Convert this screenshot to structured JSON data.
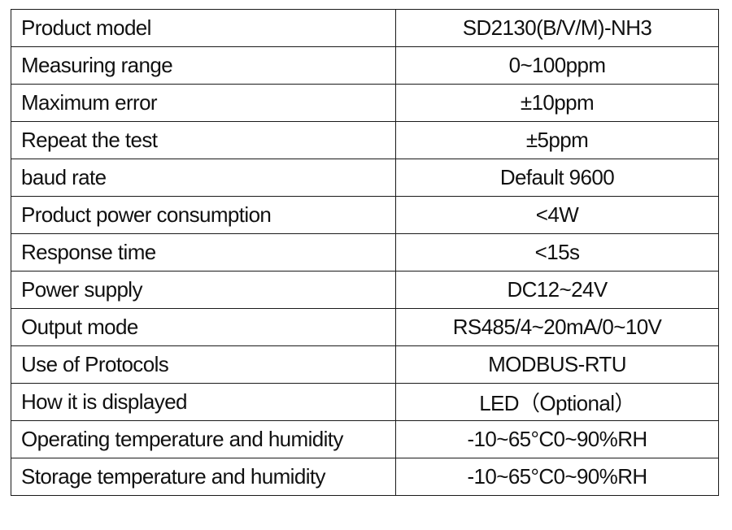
{
  "spec_table": {
    "rows": [
      {
        "label": "Product model",
        "value": "SD2130(B/V/M)-NH3"
      },
      {
        "label": "Measuring range",
        "value": "0~100ppm"
      },
      {
        "label": "Maximum error",
        "value": "±10ppm"
      },
      {
        "label": "Repeat the test",
        "value": "±5ppm"
      },
      {
        "label": "baud rate",
        "value": "Default 9600"
      },
      {
        "label": "Product power consumption",
        "value": "<4W"
      },
      {
        "label": "Response time",
        "value": "<15s"
      },
      {
        "label": "Power supply",
        "value": "DC12~24V"
      },
      {
        "label": "Output mode",
        "value": "RS485/4~20mA/0~10V"
      },
      {
        "label": "Use of Protocols",
        "value": "MODBUS-RTU"
      },
      {
        "label": "How it is displayed",
        "value": "LED（Optional）"
      },
      {
        "label": "Operating temperature and humidity",
        "value": "-10~65°C0~90%RH"
      },
      {
        "label": "Storage temperature and humidity",
        "value": "-10~65°C0~90%RH"
      }
    ]
  }
}
